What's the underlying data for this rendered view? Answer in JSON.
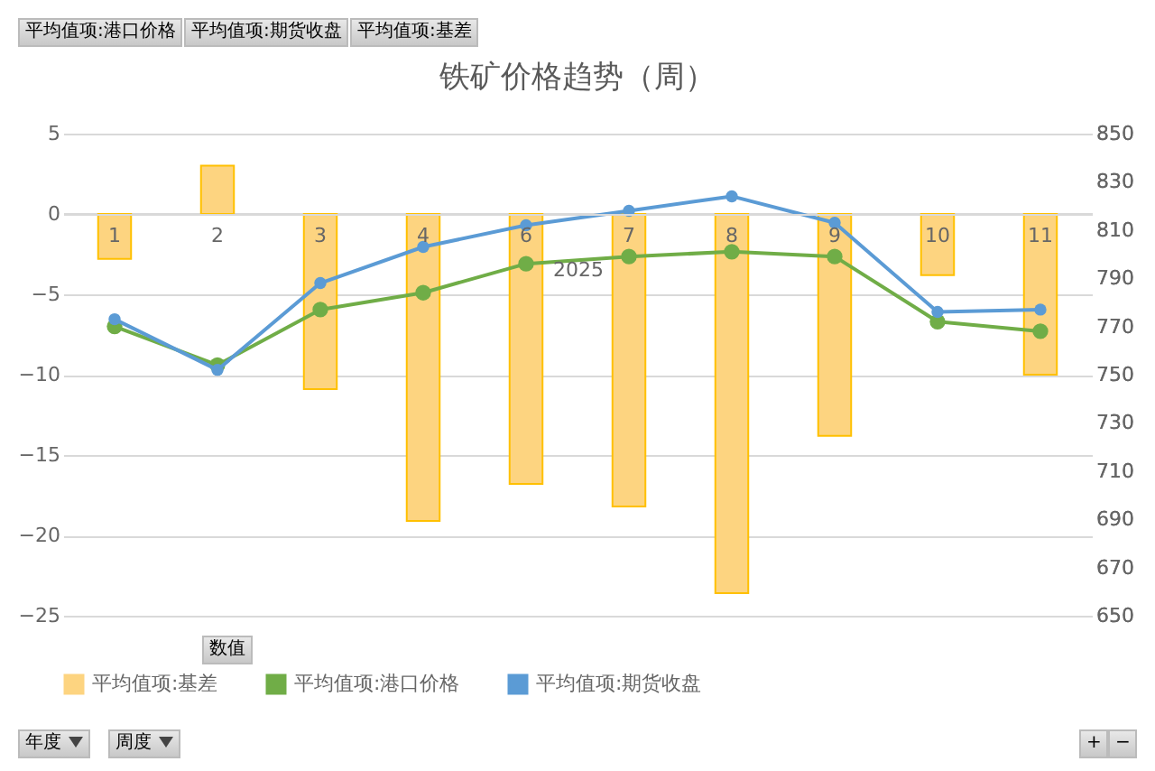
{
  "chart_data": {
    "type": "bar",
    "title": "铁矿价格趋势（周）",
    "xlabel": "2025",
    "categories": [
      "1",
      "2",
      "3",
      "4",
      "6",
      "7",
      "8",
      "9",
      "10",
      "11"
    ],
    "series": [
      {
        "name": "平均值项:基差",
        "color": "#fdd480",
        "values": [
          -2.8,
          3.0,
          -10.9,
          -19.1,
          -16.8,
          -18.2,
          -23.6,
          -13.8,
          -3.8,
          -10.0
        ]
      },
      {
        "name": "平均值项:港口价格",
        "type": "line",
        "axis": "y2",
        "color": "#70ad47",
        "values": [
          770,
          754,
          777,
          784,
          796,
          799,
          801,
          799,
          772,
          768
        ]
      },
      {
        "name": "平均值项:期货收盘",
        "type": "line",
        "axis": "y2",
        "color": "#5b9bd5",
        "values": [
          773,
          752,
          788,
          803,
          812,
          818,
          824,
          813,
          776,
          777
        ]
      }
    ],
    "ylim": [
      -25,
      5
    ],
    "yticks": [
      -25,
      -20,
      -15,
      -10,
      -5,
      0,
      5
    ],
    "y2lim": [
      650,
      850
    ],
    "y2ticks": [
      650,
      670,
      690,
      710,
      730,
      750,
      770,
      790,
      810,
      830,
      850
    ],
    "grid": "y",
    "legend": "bottom",
    "marker": "circle",
    "line_style": "solid",
    "annotations": [
      "平均值项:港口价格",
      "平均值项:期货收盘",
      "平均值项:基差",
      "数值",
      "年度",
      "周度",
      "+",
      "−"
    ]
  }
}
